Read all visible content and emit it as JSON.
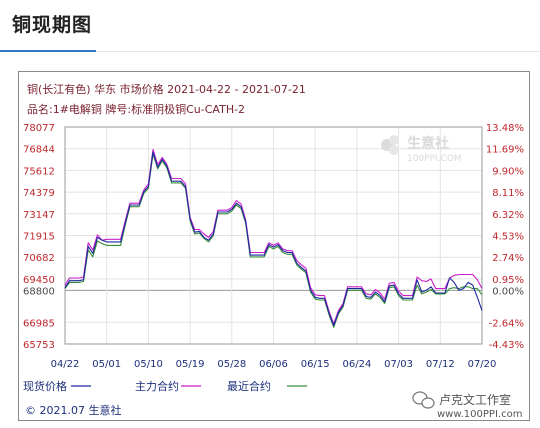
{
  "page": {
    "title": "铜现期图"
  },
  "header": {
    "line1": "铜(长江有色) 华东 市场价格 2021-04-22 - 2021-07-21",
    "line2": "品名:1#电解铜 牌号:标准阴极铜Cu-CATH-2"
  },
  "watermark": {
    "brand": "生意社",
    "url": "100PPI.COM"
  },
  "legend": [
    {
      "label": "现货价格",
      "color": "#1c2aa0"
    },
    {
      "label": "主力合约",
      "color": "#cc1fcc"
    },
    {
      "label": "最近合约",
      "color": "#3a8f3a"
    }
  ],
  "footer": {
    "copyright": "© 2021.07 生意社",
    "stamp_cn": "卢克文工作室",
    "stamp_url": "www.100PPI.com"
  },
  "chart_data": {
    "type": "line",
    "x_tick_labels": [
      "04/22",
      "05/01",
      "05/10",
      "05/19",
      "05/28",
      "06/06",
      "06/15",
      "06/24",
      "07/03",
      "07/12",
      "07/20"
    ],
    "y_ticks_left": [
      "78077",
      "76844",
      "75612",
      "74379",
      "73147",
      "71915",
      "70682",
      "69450",
      "68800",
      "66985",
      "65753"
    ],
    "y_ticks_right": [
      "13.48%",
      "11.69%",
      "9.90%",
      "8.11%",
      "6.32%",
      "4.53%",
      "2.74%",
      "0.95%",
      "0.00%",
      "-2.64%",
      "-4.43%"
    ],
    "baseline": 68800,
    "ylim": [
      65753,
      78077
    ],
    "x_first": "2021-04-22",
    "x_last": "2021-07-21",
    "series": [
      {
        "name": "现货价格",
        "color": "#1c2aa0",
        "values": [
          68950,
          69350,
          69350,
          69350,
          69400,
          71300,
          70900,
          71800,
          71650,
          71550,
          71550,
          71550,
          71550,
          72600,
          73650,
          73650,
          73650,
          74400,
          74700,
          76650,
          75800,
          76250,
          75850,
          75000,
          75000,
          75000,
          74700,
          72850,
          72100,
          72150,
          71800,
          71650,
          72000,
          73250,
          73250,
          73250,
          73400,
          73750,
          73550,
          72700,
          70800,
          70800,
          70800,
          70800,
          71400,
          71250,
          71400,
          71050,
          70950,
          70950,
          70350,
          70100,
          69900,
          68800,
          68400,
          68350,
          68350,
          67500,
          66800,
          67550,
          67950,
          68900,
          68900,
          68900,
          68900,
          68450,
          68400,
          68700,
          68500,
          68150,
          69050,
          69100,
          68600,
          68350,
          68350,
          68350,
          69400,
          68700,
          68800,
          69000,
          68650,
          68650,
          68650,
          69500,
          69250,
          68800,
          68900,
          69250,
          69100,
          68400,
          67650
        ]
      },
      {
        "name": "主力合约",
        "color": "#cc1fcc",
        "values": [
          69100,
          69500,
          69500,
          69500,
          69550,
          71500,
          71100,
          71950,
          71650,
          71700,
          71700,
          71700,
          71700,
          72750,
          73750,
          73750,
          73750,
          74500,
          74850,
          76800,
          75950,
          76350,
          75950,
          75150,
          75150,
          75150,
          74850,
          72950,
          72250,
          72250,
          72000,
          71800,
          72150,
          73350,
          73350,
          73350,
          73500,
          73900,
          73700,
          72800,
          70950,
          70950,
          70950,
          70950,
          71500,
          71350,
          71500,
          71150,
          71050,
          71050,
          70500,
          70250,
          70050,
          68950,
          68550,
          68500,
          68500,
          67600,
          66900,
          67650,
          68050,
          69000,
          69000,
          69000,
          69000,
          68600,
          68550,
          68850,
          68650,
          68300,
          69200,
          69250,
          68750,
          68500,
          68500,
          68500,
          69550,
          69350,
          69300,
          69450,
          68900,
          68900,
          68900,
          69500,
          69650,
          69700,
          69700,
          69700,
          69700,
          69400,
          68900
        ]
      },
      {
        "name": "最近合约",
        "color": "#3a8f3a",
        "values": [
          68900,
          69250,
          69250,
          69250,
          69300,
          71100,
          70700,
          71600,
          71450,
          71350,
          71350,
          71350,
          71350,
          72500,
          73550,
          73550,
          73550,
          74300,
          74600,
          76550,
          75700,
          76150,
          75750,
          74900,
          74900,
          74900,
          74600,
          72750,
          72000,
          72050,
          71750,
          71550,
          71900,
          73150,
          73150,
          73150,
          73300,
          73650,
          73450,
          72600,
          70700,
          70700,
          70700,
          70700,
          71300,
          71150,
          71300,
          70950,
          70850,
          70850,
          70250,
          70000,
          69800,
          68700,
          68300,
          68250,
          68250,
          67400,
          66700,
          67450,
          67850,
          68800,
          68800,
          68800,
          68800,
          68350,
          68300,
          68600,
          68400,
          68050,
          68950,
          69000,
          68500,
          68250,
          68250,
          68250,
          69100,
          68600,
          68700,
          68850,
          68600,
          68600,
          68600,
          68900,
          68950,
          68900,
          69000,
          69000,
          68900,
          68900,
          68550
        ]
      }
    ]
  }
}
